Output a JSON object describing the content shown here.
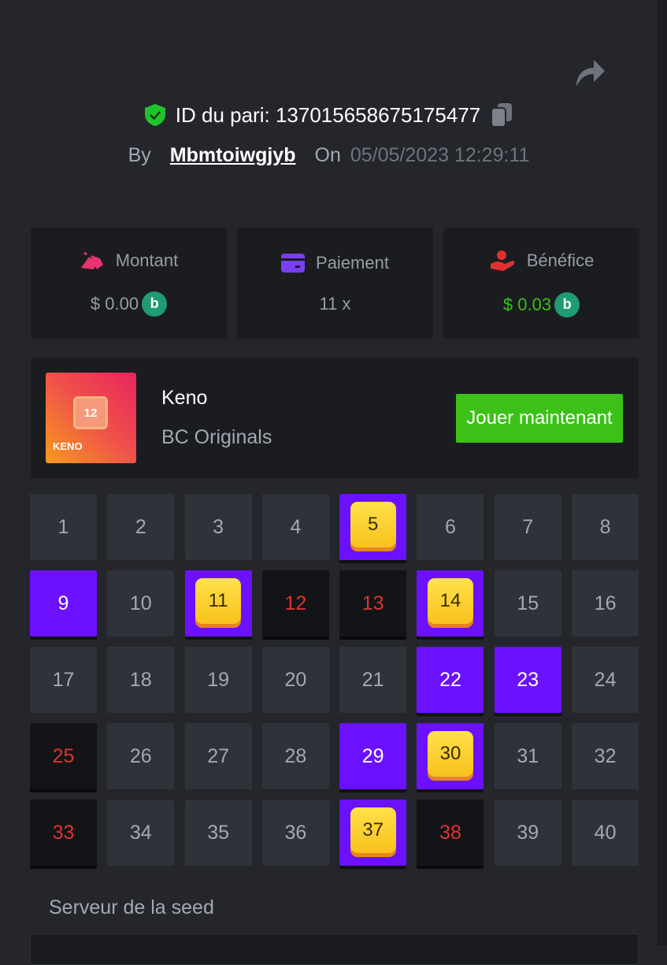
{
  "header": {
    "bet_id_label": "ID du pari:",
    "bet_id": "137015658675175477",
    "by_label": "By",
    "username": "Mbmtoiwgjyb",
    "on_label": "On",
    "date": "05/05/2023 12:29:11"
  },
  "stats": [
    {
      "label": "Montant",
      "value": "$ 0.00",
      "icon": "bag-icon",
      "color": "#e8336f"
    },
    {
      "label": "Paiement",
      "value": "11 x",
      "icon": "card-icon",
      "color": "#7b3ff2"
    },
    {
      "label": "Bénéfice",
      "value": "$ 0.03",
      "icon": "hand-money-icon",
      "color": "#e0312f",
      "value_color": "#3bc117"
    }
  ],
  "coin_symbol": "b",
  "game": {
    "name": "Keno",
    "provider": "BC Originals",
    "thumb_number": "12",
    "thumb_title": "KENO",
    "play_label": "Jouer maintenant"
  },
  "grid": {
    "picked": [
      9,
      22,
      23,
      29
    ],
    "hits": [
      5,
      11,
      14,
      30,
      37
    ],
    "misses": [
      12,
      13,
      25,
      33,
      38
    ],
    "total": 40
  },
  "seed": {
    "label": "Serveur de la seed"
  },
  "colors": {
    "accent": "#6b11ff",
    "success": "#3bc117",
    "miss": "#e0312f"
  }
}
